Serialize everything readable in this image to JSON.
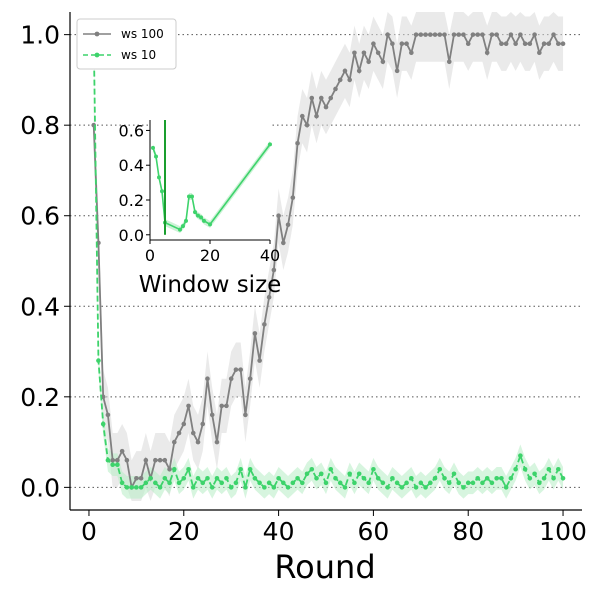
{
  "chart_data": [
    {
      "type": "line",
      "xlabel": "Round",
      "ylabel": "",
      "xlim": [
        -4,
        104
      ],
      "ylim": [
        -0.05,
        1.05
      ],
      "xticks": [
        0,
        20,
        40,
        60,
        80,
        100
      ],
      "yticks": [
        0.0,
        0.2,
        0.4,
        0.6,
        0.8,
        1.0
      ],
      "xtick_labels": [
        "0",
        "20",
        "40",
        "60",
        "80",
        "100"
      ],
      "ytick_labels": [
        "0.0",
        "0.2",
        "0.4",
        "0.6",
        "0.8",
        "1.0"
      ],
      "grid": "horizontal-dotted",
      "legend": "top-left",
      "series": [
        {
          "name": "ws 100",
          "color": "#808080",
          "band_color": "#d9d9d9",
          "linestyle": "solid",
          "marker": "dot",
          "band_half_width": 0.06,
          "x": [
            1,
            2,
            3,
            4,
            5,
            6,
            7,
            8,
            9,
            10,
            11,
            12,
            13,
            14,
            15,
            16,
            17,
            18,
            19,
            20,
            21,
            22,
            23,
            24,
            25,
            26,
            27,
            28,
            29,
            30,
            31,
            32,
            33,
            34,
            35,
            36,
            37,
            38,
            39,
            40,
            41,
            42,
            43,
            44,
            45,
            46,
            47,
            48,
            49,
            50,
            51,
            52,
            53,
            54,
            55,
            56,
            57,
            58,
            59,
            60,
            61,
            62,
            63,
            64,
            65,
            66,
            67,
            68,
            69,
            70,
            71,
            72,
            73,
            74,
            75,
            76,
            77,
            78,
            79,
            80,
            81,
            82,
            83,
            84,
            85,
            86,
            87,
            88,
            89,
            90,
            91,
            92,
            93,
            94,
            95,
            96,
            97,
            98,
            99,
            100
          ],
          "values": [
            0.8,
            0.54,
            0.2,
            0.16,
            0.06,
            0.06,
            0.08,
            0.06,
            0.0,
            0.02,
            0.02,
            0.06,
            0.02,
            0.06,
            0.06,
            0.06,
            0.04,
            0.1,
            0.12,
            0.14,
            0.18,
            0.12,
            0.1,
            0.14,
            0.24,
            0.16,
            0.1,
            0.18,
            0.18,
            0.24,
            0.26,
            0.26,
            0.16,
            0.24,
            0.34,
            0.28,
            0.36,
            0.42,
            0.48,
            0.6,
            0.54,
            0.58,
            0.64,
            0.76,
            0.82,
            0.8,
            0.86,
            0.82,
            0.86,
            0.84,
            0.86,
            0.88,
            0.9,
            0.92,
            0.9,
            0.96,
            0.92,
            0.96,
            0.94,
            0.98,
            0.96,
            0.94,
            1.0,
            0.98,
            0.92,
            0.98,
            0.98,
            0.96,
            1.0,
            1.0,
            1.0,
            1.0,
            1.0,
            1.0,
            1.0,
            0.94,
            1.0,
            1.0,
            1.0,
            0.98,
            1.0,
            1.0,
            1.0,
            0.96,
            1.0,
            1.0,
            0.98,
            0.98,
            1.0,
            0.98,
            1.0,
            0.98,
            0.98,
            1.0,
            0.96,
            0.98,
            0.98,
            1.0,
            0.98,
            0.98
          ]
        },
        {
          "name": "ws 10",
          "color": "#3dd36b",
          "band_color": "#b7ecc4",
          "linestyle": "dashed",
          "marker": "dot",
          "band_half_width": 0.025,
          "x": [
            1,
            2,
            3,
            4,
            5,
            6,
            7,
            8,
            9,
            10,
            11,
            12,
            13,
            14,
            15,
            16,
            17,
            18,
            19,
            20,
            21,
            22,
            23,
            24,
            25,
            26,
            27,
            28,
            29,
            30,
            31,
            32,
            33,
            34,
            35,
            36,
            37,
            38,
            39,
            40,
            41,
            42,
            43,
            44,
            45,
            46,
            47,
            48,
            49,
            50,
            51,
            52,
            53,
            54,
            55,
            56,
            57,
            58,
            59,
            60,
            61,
            62,
            63,
            64,
            65,
            66,
            67,
            68,
            69,
            70,
            71,
            72,
            73,
            74,
            75,
            76,
            77,
            78,
            79,
            80,
            81,
            82,
            83,
            84,
            85,
            86,
            87,
            88,
            89,
            90,
            91,
            92,
            93,
            94,
            95,
            96,
            97,
            98,
            99,
            100
          ],
          "values": [
            1.0,
            0.28,
            0.14,
            0.06,
            0.05,
            0.05,
            0.01,
            0.0,
            0.0,
            0.0,
            0.0,
            0.01,
            0.02,
            0.01,
            0.0,
            0.02,
            0.01,
            0.04,
            0.01,
            0.02,
            0.04,
            0.0,
            0.02,
            0.01,
            0.02,
            0.0,
            0.02,
            0.01,
            0.02,
            0.0,
            0.01,
            0.04,
            0.0,
            0.04,
            0.02,
            0.01,
            0.0,
            0.01,
            0.0,
            0.02,
            0.01,
            0.0,
            0.01,
            0.02,
            0.01,
            0.03,
            0.04,
            0.02,
            0.03,
            0.01,
            0.04,
            0.02,
            0.01,
            0.0,
            0.03,
            0.01,
            0.03,
            0.02,
            0.01,
            0.04,
            0.02,
            0.01,
            0.0,
            0.02,
            0.01,
            0.0,
            0.01,
            0.02,
            0.0,
            0.01,
            0.0,
            0.01,
            0.02,
            0.04,
            0.02,
            0.01,
            0.03,
            0.01,
            0.0,
            0.01,
            0.01,
            0.02,
            0.01,
            0.02,
            0.01,
            0.02,
            0.02,
            0.0,
            0.02,
            0.04,
            0.07,
            0.04,
            0.02,
            0.03,
            0.01,
            0.02,
            0.04,
            0.02,
            0.04,
            0.02
          ]
        }
      ]
    },
    {
      "type": "line",
      "role": "inset",
      "xlabel": "Window size",
      "ylabel": "",
      "xlim": [
        0,
        40
      ],
      "ylim": [
        -0.03,
        0.66
      ],
      "xticks": [
        0,
        20,
        40
      ],
      "yticks": [
        0.0,
        0.2,
        0.4,
        0.6
      ],
      "xtick_labels": [
        "0",
        "20",
        "40"
      ],
      "ytick_labels": [
        "0.0",
        "0.2",
        "0.4",
        "0.6"
      ],
      "vline": {
        "x": 5,
        "color": "#1a9e2e"
      },
      "series": [
        {
          "color": "#3dd36b",
          "band_color": "#b7ecc4",
          "x": [
            1,
            2,
            3,
            4,
            5,
            10,
            11,
            12,
            13,
            14,
            15,
            16,
            17,
            18,
            20,
            40
          ],
          "values": [
            0.5,
            0.45,
            0.33,
            0.25,
            0.07,
            0.03,
            0.05,
            0.08,
            0.22,
            0.22,
            0.13,
            0.11,
            0.1,
            0.08,
            0.06,
            0.52
          ],
          "band_half_width": 0.02
        }
      ]
    }
  ]
}
